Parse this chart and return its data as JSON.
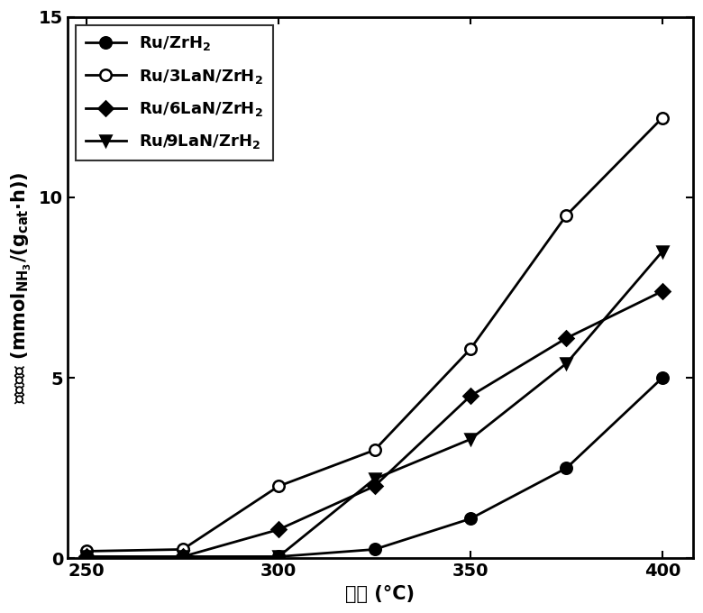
{
  "x": [
    250,
    275,
    300,
    325,
    350,
    375,
    400
  ],
  "series": [
    {
      "label_main": "Ru/ZrH",
      "label_sub": "2",
      "y": [
        0.05,
        0.05,
        0.05,
        0.25,
        1.1,
        2.5,
        5.0
      ],
      "marker": "o",
      "markersize": 9,
      "markerfacecolor": "black",
      "color": "black"
    },
    {
      "label_main": "Ru/3LaN/ZrH",
      "label_sub": "2",
      "y": [
        0.2,
        0.25,
        2.0,
        3.0,
        5.8,
        9.5,
        12.2
      ],
      "marker": "o",
      "markersize": 9,
      "markerfacecolor": "white",
      "color": "black"
    },
    {
      "label_main": "Ru/6LaN/ZrH",
      "label_sub": "2",
      "y": [
        0.05,
        0.05,
        0.8,
        2.0,
        4.5,
        6.1,
        7.4
      ],
      "marker": "D",
      "markersize": 8,
      "markerfacecolor": "black",
      "color": "black"
    },
    {
      "label_main": "Ru/9LaN/ZrH",
      "label_sub": "2",
      "y": [
        0.05,
        0.05,
        0.05,
        2.2,
        3.3,
        5.4,
        8.5
      ],
      "marker": "v",
      "markersize": 9,
      "markerfacecolor": "black",
      "color": "black"
    }
  ],
  "labels": [
    "Ru/ZrH$_2$",
    "Ru/3LaN/ZrH$_2$",
    "Ru/6LaN/ZrH$_2$",
    "Ru/9LaN/ZrH$_2$"
  ],
  "xlim": [
    245,
    408
  ],
  "ylim": [
    0,
    15
  ],
  "xticks": [
    250,
    300,
    350,
    400
  ],
  "yticks": [
    0,
    5,
    10,
    15
  ],
  "linewidth": 2.0,
  "background_color": "#ffffff",
  "label_fontsize": 15,
  "tick_fontsize": 14,
  "legend_fontsize": 13
}
